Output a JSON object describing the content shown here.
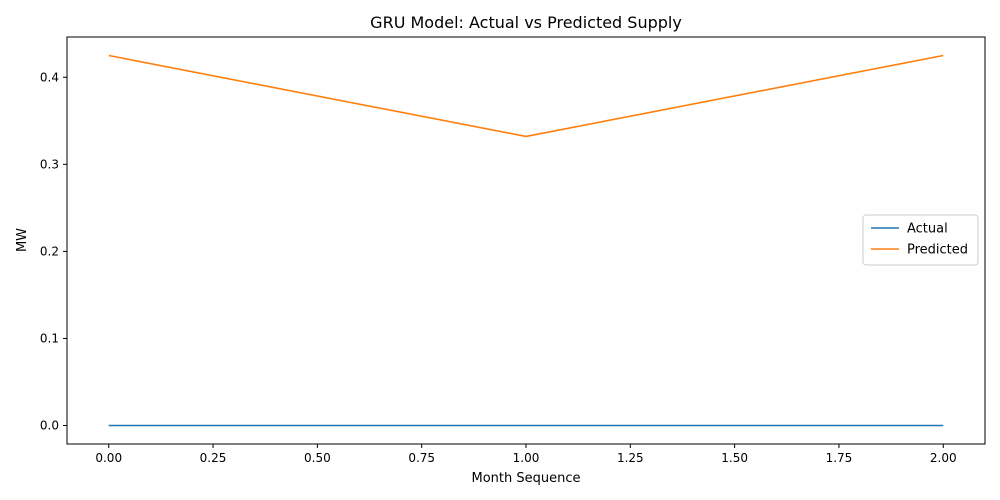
{
  "chart_data": {
    "type": "line",
    "title": "GRU Model: Actual vs Predicted Supply",
    "xlabel": "Month Sequence",
    "ylabel": "MW",
    "xlim": [
      -0.1,
      2.1
    ],
    "ylim": [
      -0.02125,
      0.44625
    ],
    "xticks": [
      0.0,
      0.25,
      0.5,
      0.75,
      1.0,
      1.25,
      1.5,
      1.75,
      2.0
    ],
    "xtick_labels": [
      "0.00",
      "0.25",
      "0.50",
      "0.75",
      "1.00",
      "1.25",
      "1.50",
      "1.75",
      "2.00"
    ],
    "yticks": [
      0.0,
      0.1,
      0.2,
      0.3,
      0.4
    ],
    "ytick_labels": [
      "0.0",
      "0.1",
      "0.2",
      "0.3",
      "0.4"
    ],
    "grid": false,
    "legend_position": "center-right",
    "x": [
      0,
      1,
      2
    ],
    "series": [
      {
        "name": "Actual",
        "values": [
          0.0,
          0.0,
          0.0
        ],
        "color": "#1f77b4"
      },
      {
        "name": "Predicted",
        "values": [
          0.425,
          0.332,
          0.425
        ],
        "color": "#ff7f0e"
      }
    ]
  }
}
